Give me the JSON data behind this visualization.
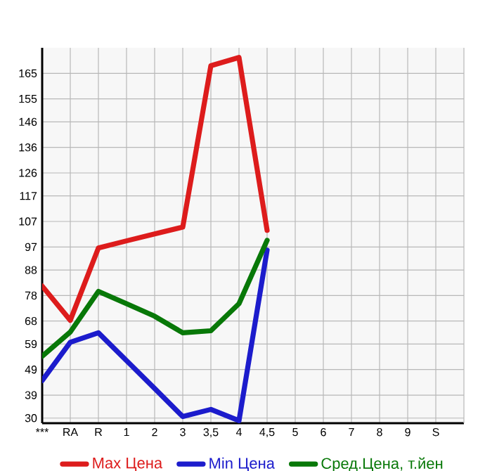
{
  "chart_data": {
    "type": "line",
    "categories": [
      "***",
      "RA",
      "R",
      "1",
      "2",
      "3",
      "3,5",
      "4",
      "4,5",
      "5",
      "6",
      "7",
      "8",
      "9",
      "S"
    ],
    "series": [
      {
        "name": "Max Цена",
        "color": "#dd1c1c",
        "values": [
          81.7,
          68.3,
          96.6,
          99.4,
          102.1,
          104.8,
          168,
          171.2,
          103.5,
          null,
          null,
          null,
          null,
          null,
          null
        ]
      },
      {
        "name": "Min Цена",
        "color": "#1c1ccc",
        "values": [
          44.7,
          59.7,
          63.4,
          52.5,
          41.6,
          30.6,
          33.4,
          29,
          95.8,
          null,
          null,
          null,
          null,
          null,
          null
        ]
      },
      {
        "name": "Сред.Цена, т.йен",
        "color": "#087808",
        "values": [
          54.2,
          63.7,
          79.6,
          74.8,
          69.9,
          63.4,
          64.2,
          74.8,
          99.6,
          null,
          null,
          null,
          null,
          null,
          null
        ]
      }
    ],
    "ylim": [
      28,
      175
    ],
    "yticks": [
      30,
      39,
      49,
      59,
      68,
      78,
      88,
      97,
      107,
      117,
      126,
      136,
      146,
      155,
      165
    ],
    "grid": true,
    "legend": "bottom",
    "marker": "none",
    "line_style": "solid"
  }
}
